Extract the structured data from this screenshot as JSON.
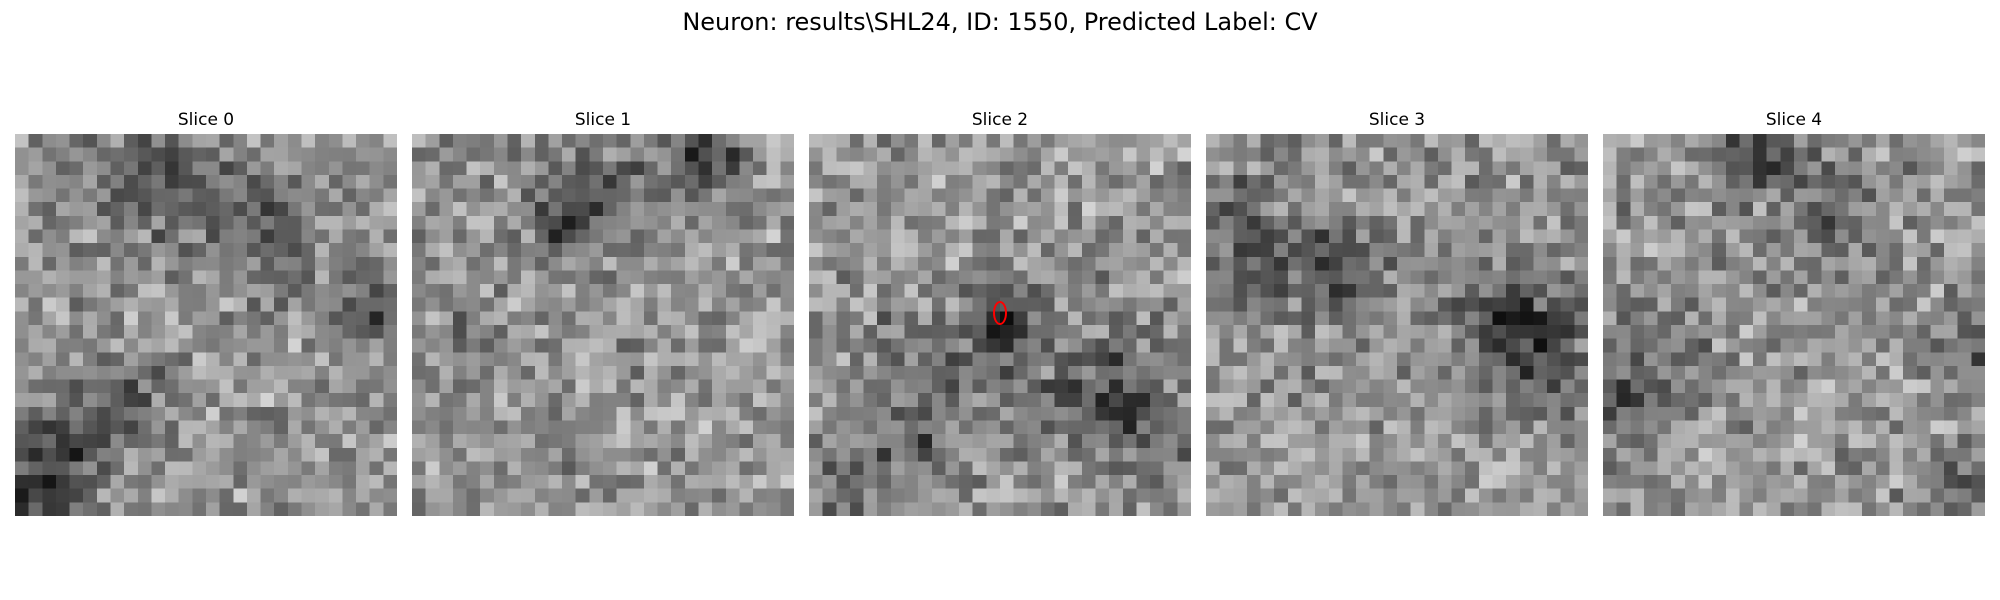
{
  "figure": {
    "suptitle": "Neuron: results\\SHL24, ID: 1550, Predicted Label: CV"
  },
  "slices": [
    {
      "title": "Slice 0"
    },
    {
      "title": "Slice 1"
    },
    {
      "title": "Slice 2",
      "has_marker": true,
      "marker_color": "#ff0000"
    },
    {
      "title": "Slice 3"
    },
    {
      "title": "Slice 4"
    }
  ],
  "image": {
    "colormap": "grayscale",
    "grid_size": 28
  }
}
